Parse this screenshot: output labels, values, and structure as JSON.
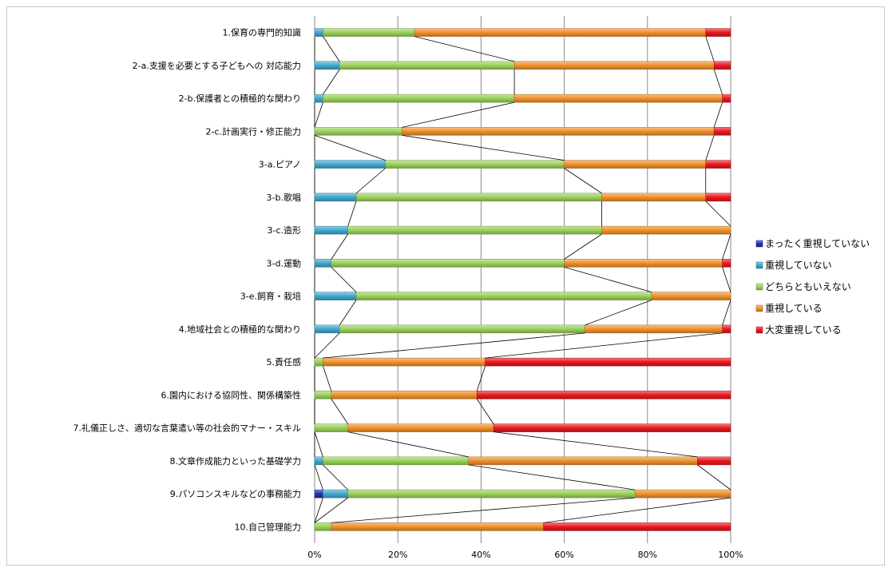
{
  "chart_data": {
    "type": "bar",
    "stacked": "percent",
    "orientation": "horizontal",
    "title": "",
    "xlabel": "",
    "ylabel": "",
    "xlim": [
      0,
      100
    ],
    "x_ticks": [
      "0%",
      "20%",
      "40%",
      "60%",
      "80%",
      "100%"
    ],
    "grid": "vertical",
    "series_lines": true,
    "legend_position": "right",
    "categories": [
      "1.保育の専門的知識",
      "2-a.支援を必要とする子どもへの 対応能力",
      "2-b.保護者との積極的な関わり",
      "2-c.計画実行・修正能力",
      "3-a.ピアノ",
      "3-b.歌唱",
      "3-c.造形",
      "3-d.運動",
      "3-e.飼育・栽培",
      "4.地域社会との積極的な関わり",
      "5.責任感",
      "6.園内における協同性、関係構築性",
      "7.礼儀正しさ、適切な言葉遣い等の社会的マナー・スキル",
      "8.文章作成能力といった基礎学力",
      "9.パソコンスキルなどの事務能力",
      "10.自己管理能力"
    ],
    "series": [
      {
        "name": "まったく重視していない",
        "color": "#1f2fb5",
        "values": [
          0,
          0,
          0,
          0,
          0,
          0,
          0,
          0,
          0,
          0,
          0,
          0,
          0,
          0,
          2,
          0
        ]
      },
      {
        "name": "重視していない",
        "color": "#3fa8cc",
        "values": [
          2,
          6,
          2,
          0,
          17,
          10,
          8,
          4,
          10,
          6,
          0,
          0,
          0,
          2,
          6,
          0
        ]
      },
      {
        "name": "どちらともいえない",
        "color": "#9bd15a",
        "values": [
          22,
          42,
          46,
          21,
          43,
          59,
          61,
          56,
          71,
          59,
          2,
          4,
          8,
          35,
          69,
          4
        ]
      },
      {
        "name": "重視している",
        "color": "#f0902a",
        "values": [
          70,
          48,
          50,
          75,
          34,
          25,
          31,
          38,
          19,
          33,
          39,
          35,
          35,
          55,
          23,
          51
        ]
      },
      {
        "name": "大変重視している",
        "color": "#e8181e",
        "values": [
          6,
          4,
          2,
          4,
          6,
          6,
          0,
          2,
          0,
          2,
          59,
          61,
          57,
          8,
          0,
          45
        ]
      }
    ]
  }
}
